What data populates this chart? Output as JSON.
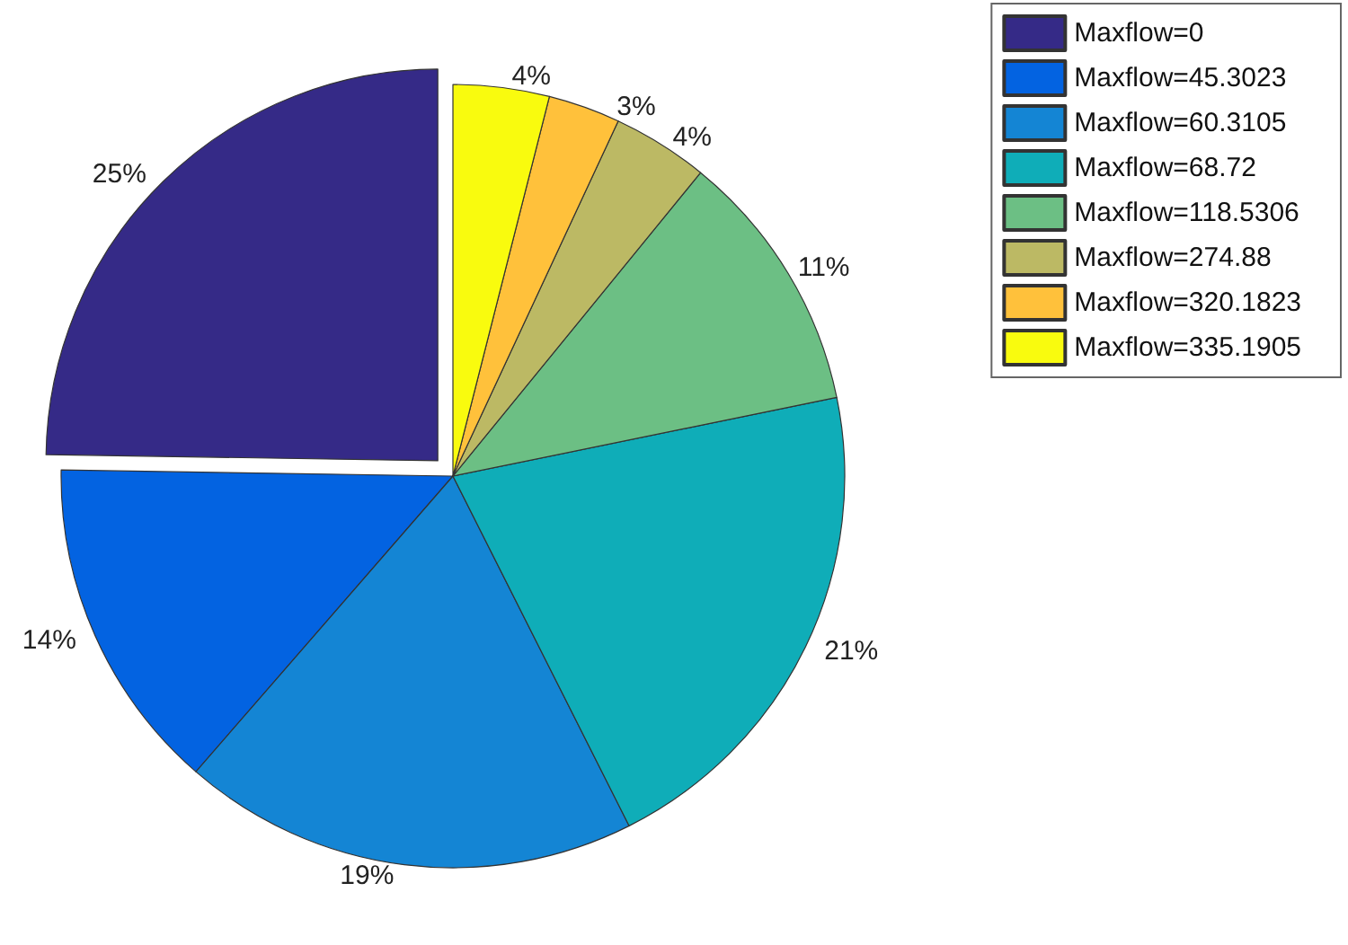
{
  "chart_data": {
    "type": "pie",
    "categories": [
      "Maxflow=0",
      "Maxflow=45.3023",
      "Maxflow=60.3105",
      "Maxflow=68.72",
      "Maxflow=118.5306",
      "Maxflow=274.88",
      "Maxflow=320.1823",
      "Maxflow=335.1905"
    ],
    "values": [
      25,
      14,
      19,
      21,
      11,
      4,
      3,
      4
    ],
    "value_labels": [
      "25%",
      "14%",
      "19%",
      "21%",
      "11%",
      "4%",
      "3%",
      "4%"
    ],
    "colors": [
      "#352a87",
      "#0363e1",
      "#1485d4",
      "#0fadb8",
      "#6cbf84",
      "#bcb964",
      "#ffc13b",
      "#f9fb0e"
    ],
    "legend": "top right"
  }
}
